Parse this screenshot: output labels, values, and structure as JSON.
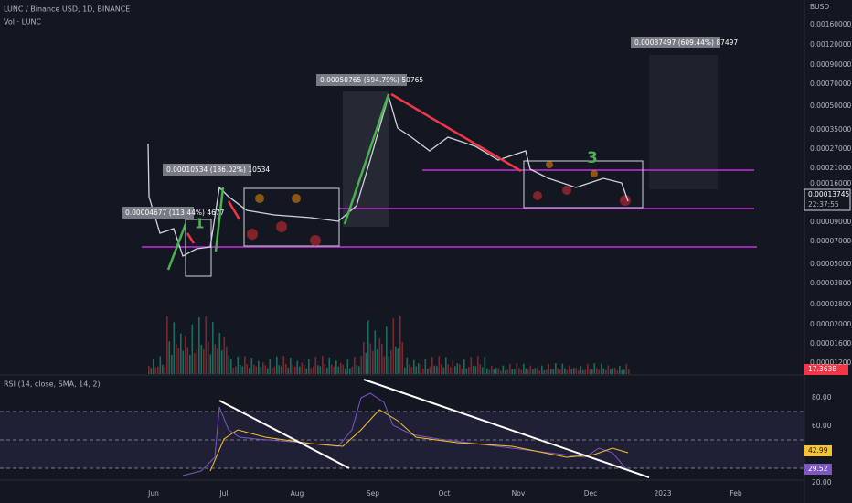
{
  "header": {
    "symbol": "LUNC / Binance USD, 1D, BINANCE",
    "volume": "Vol · LUNC",
    "rsi": "RSI (14, close, SMA, 14, 2)"
  },
  "price_axis": {
    "currency": "BUSD",
    "labels": [
      "0.00160000",
      "0.00120000",
      "0.00090000",
      "0.00070000",
      "0.00050000",
      "0.00035000",
      "0.00027000",
      "0.00021000",
      "0.00016000",
      "0.00009000",
      "0.00007000",
      "0.00005000",
      "0.00003800",
      "0.00002800",
      "0.00002000",
      "0.00001600",
      "0.00001200"
    ],
    "last_price": "0.00013745",
    "countdown": "22:37:55",
    "volume_badge": "17.363B"
  },
  "rsi_axis": {
    "labels": [
      "80.00",
      "60.00",
      "20.00"
    ],
    "rsi_badge": "42.99",
    "sma_badge": "29.52"
  },
  "time_axis": [
    "Jun",
    "Jul",
    "Aug",
    "Sep",
    "Oct",
    "Nov",
    "Dec",
    "2023",
    "Feb"
  ],
  "annotations": {
    "move1": "0.00004677 (113.44%) 4677",
    "move2": "0.00010534 (186.02%) 10534",
    "move3": "0.00050765 (594.79%) 50765",
    "target": "0.00087497 (609.44%) 87497",
    "wave1": "1",
    "wave3": "3"
  }
}
